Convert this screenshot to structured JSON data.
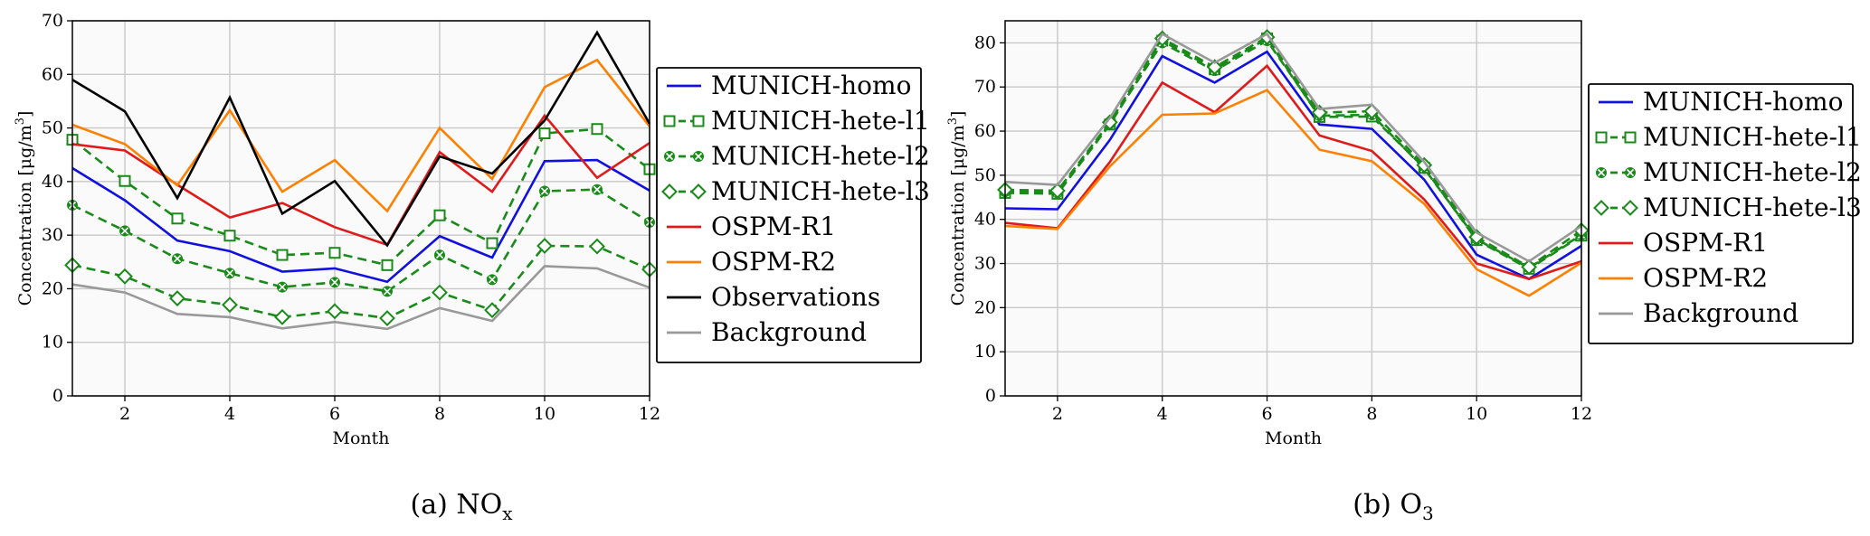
{
  "chart_data": [
    {
      "type": "line",
      "caption": "(a) NO",
      "caption_sub": "x",
      "xlabel": "Month",
      "ylabel": "Concentration [μg/m",
      "ylabel_sup": "3",
      "ylabel_end": "]",
      "xlim": [
        1,
        12
      ],
      "ylim": [
        0,
        70
      ],
      "xticks": [
        2,
        4,
        6,
        8,
        10,
        12
      ],
      "yticks": [
        0,
        10,
        20,
        30,
        40,
        50,
        60,
        70
      ],
      "grid": true,
      "legend_position": "outside-right",
      "x": [
        1,
        2,
        3,
        4,
        5,
        6,
        7,
        8,
        9,
        10,
        11,
        12
      ],
      "series": [
        {
          "name": "MUNICH-homo",
          "color": "#1010e0",
          "style": "solid",
          "marker": "none",
          "values": [
            42.5,
            36.5,
            29,
            27,
            23.2,
            23.8,
            21.3,
            29.8,
            25.8,
            43.8,
            44,
            38.3
          ]
        },
        {
          "name": "MUNICH-hete-l1",
          "color": "#1a8a1a",
          "style": "dashed",
          "marker": "square",
          "values": [
            47.8,
            40.1,
            33.1,
            29.9,
            26.3,
            26.7,
            24.4,
            33.7,
            28.5,
            49,
            49.8,
            42.3
          ]
        },
        {
          "name": "MUNICH-hete-l2",
          "color": "#1a8a1a",
          "style": "dashed",
          "marker": "x-circle",
          "values": [
            35.6,
            30.8,
            25.6,
            22.9,
            20.3,
            21.2,
            19.5,
            26.3,
            21.7,
            38.2,
            38.5,
            32.4
          ]
        },
        {
          "name": "MUNICH-hete-l3",
          "color": "#1a8a1a",
          "style": "dashed",
          "marker": "diamond",
          "values": [
            24.4,
            22.3,
            18.2,
            17,
            14.7,
            15.8,
            14.5,
            19.3,
            16,
            28,
            27.9,
            23.6
          ]
        },
        {
          "name": "OSPM-R1",
          "color": "#e01a1a",
          "style": "solid",
          "marker": "none",
          "values": [
            47,
            45.8,
            39.4,
            33.3,
            36,
            31.5,
            28.2,
            45.5,
            38.1,
            52.3,
            40.7,
            47.2
          ]
        },
        {
          "name": "OSPM-R2",
          "color": "#ff8000",
          "style": "solid",
          "marker": "none",
          "values": [
            50.6,
            47,
            39.3,
            53.3,
            38.1,
            44,
            34.5,
            50,
            40.5,
            57.6,
            62.7,
            50.3
          ]
        },
        {
          "name": "Observations",
          "color": "#000000",
          "style": "solid",
          "marker": "none",
          "values": [
            59,
            53.1,
            36.9,
            55.7,
            34,
            40.1,
            28.1,
            44.7,
            41.5,
            51.4,
            67.8,
            50.8
          ]
        },
        {
          "name": "Background",
          "color": "#999999",
          "style": "solid",
          "marker": "none",
          "values": [
            20.8,
            19.3,
            15.3,
            14.7,
            12.6,
            13.8,
            12.5,
            16.4,
            14,
            24.2,
            23.8,
            20.2
          ]
        }
      ]
    },
    {
      "type": "line",
      "caption": "(b) O",
      "caption_sub": "3",
      "xlabel": "Month",
      "ylabel": "Concentration [μg/m",
      "ylabel_sup": "3",
      "ylabel_end": "]",
      "xlim": [
        1,
        12
      ],
      "ylim": [
        0,
        85
      ],
      "xticks": [
        2,
        4,
        6,
        8,
        10,
        12
      ],
      "yticks": [
        0,
        10,
        20,
        30,
        40,
        50,
        60,
        70,
        80
      ],
      "grid": true,
      "legend_position": "outside-right",
      "x": [
        1,
        2,
        3,
        4,
        5,
        6,
        7,
        8,
        9,
        10,
        11,
        12
      ],
      "series": [
        {
          "name": "MUNICH-homo",
          "color": "#1010e0",
          "style": "solid",
          "marker": "none",
          "values": [
            42.5,
            42.3,
            58,
            77,
            71,
            78,
            61.5,
            60.5,
            49,
            32,
            26.5,
            34
          ]
        },
        {
          "name": "MUNICH-hete-l1",
          "color": "#1a8a1a",
          "style": "dashed",
          "marker": "square",
          "values": [
            46,
            45.8,
            61.5,
            80.5,
            74,
            81,
            63.2,
            63.3,
            51.7,
            35.3,
            28.8,
            36.3
          ]
        },
        {
          "name": "MUNICH-hete-l2",
          "color": "#1a8a1a",
          "style": "dashed",
          "marker": "x-circle",
          "values": [
            46.3,
            46,
            61.7,
            80,
            73.7,
            80.5,
            63.5,
            63.7,
            51.5,
            35.5,
            29,
            36.5
          ]
        },
        {
          "name": "MUNICH-hete-l3",
          "color": "#1a8a1a",
          "style": "dashed",
          "marker": "diamond",
          "values": [
            46.7,
            46.5,
            62,
            81,
            74.5,
            81.3,
            64.2,
            64.5,
            52.3,
            36,
            29.2,
            37.5
          ]
        },
        {
          "name": "OSPM-R1",
          "color": "#e01a1a",
          "style": "solid",
          "marker": "none",
          "values": [
            39.2,
            38,
            53,
            71,
            64.3,
            74.8,
            59,
            55.5,
            44.5,
            30,
            26.5,
            30.5
          ]
        },
        {
          "name": "OSPM-R2",
          "color": "#ff8000",
          "style": "solid",
          "marker": "none",
          "values": [
            38.5,
            37.8,
            52,
            63.7,
            64,
            69.3,
            55.8,
            53.2,
            43.5,
            28.7,
            22.7,
            30.2
          ]
        },
        {
          "name": "Background",
          "color": "#999999",
          "style": "solid",
          "marker": "none",
          "values": [
            48.5,
            47.8,
            63,
            82,
            75.5,
            82,
            65,
            66,
            53,
            37,
            30.5,
            38.5
          ]
        }
      ]
    }
  ]
}
